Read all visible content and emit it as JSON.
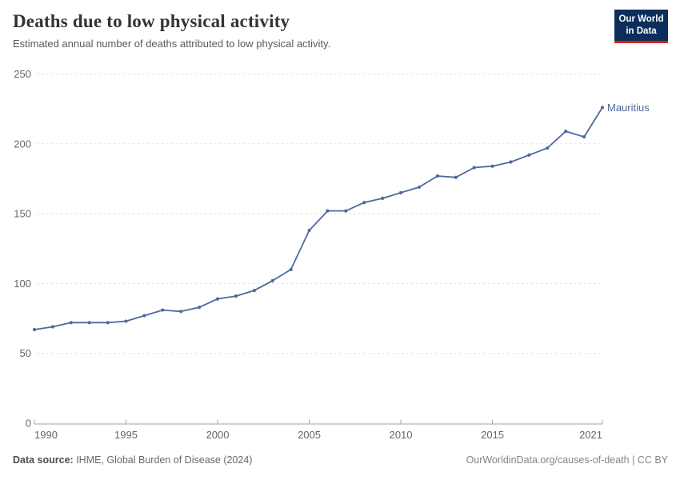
{
  "header": {
    "title": "Deaths due to low physical activity",
    "subtitle": "Estimated annual number of deaths attributed to low physical activity."
  },
  "logo": {
    "line1": "Our World",
    "line2": "in Data",
    "bg_color": "#0D2E5B",
    "accent_color": "#CE261B"
  },
  "chart_data": {
    "type": "line",
    "title": "Deaths due to low physical activity",
    "series": [
      {
        "name": "Mauritius",
        "x": [
          1990,
          1991,
          1992,
          1993,
          1994,
          1995,
          1996,
          1997,
          1998,
          1999,
          2000,
          2001,
          2002,
          2003,
          2004,
          2005,
          2006,
          2007,
          2008,
          2009,
          2010,
          2011,
          2012,
          2013,
          2014,
          2015,
          2016,
          2017,
          2018,
          2019,
          2020,
          2021
        ],
        "values": [
          67,
          69,
          72,
          72,
          72,
          73,
          77,
          81,
          80,
          83,
          89,
          91,
          95,
          102,
          110,
          138,
          152,
          152,
          158,
          161,
          165,
          169,
          177,
          176,
          183,
          184,
          187,
          192,
          197,
          209,
          205,
          226
        ]
      }
    ],
    "xlabel": "",
    "ylabel": "",
    "xlim": [
      1990,
      2021
    ],
    "ylim": [
      0,
      250
    ],
    "yticks": [
      0,
      50,
      100,
      150,
      200,
      250
    ],
    "xticks": [
      1990,
      1995,
      2000,
      2005,
      2010,
      2015,
      2021
    ],
    "grid": true,
    "legend_position": "end-of-line",
    "line_color": "#4C6A9C",
    "grid_color": "#dddddd",
    "axis_color": "#a5a5a5",
    "tick_label_color": "#666666",
    "entity_label": "Mauritius"
  },
  "footer": {
    "source_label": "Data source:",
    "source_text": " IHME, Global Burden of Disease (2024)",
    "credit": "OurWorldinData.org/causes-of-death | CC BY"
  }
}
